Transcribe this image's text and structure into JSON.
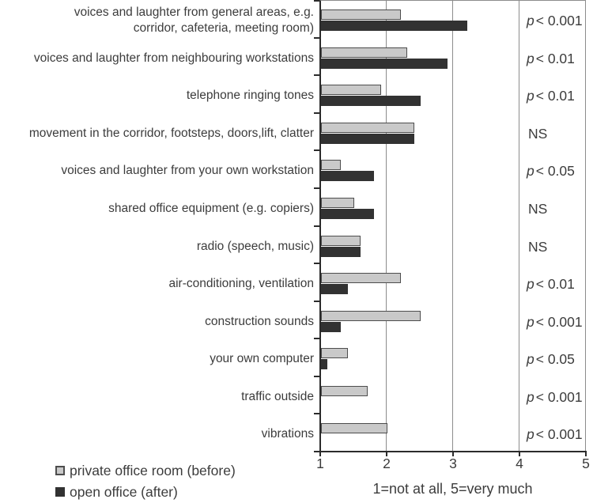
{
  "chart_data": {
    "type": "bar",
    "orientation": "horizontal",
    "title": "",
    "xlabel": "1=not at all, 5=very much",
    "xlim": [
      1,
      5
    ],
    "x_ticks": [
      "1",
      "2",
      "3",
      "4",
      "5"
    ],
    "gridlines_at": [
      2,
      3,
      4
    ],
    "grid": "vertical",
    "legend_position": "bottom-left",
    "axis_color": "#2b2b2b",
    "gridline_color": "#8c8c8c",
    "text_color": "#3c3c3c",
    "categories": [
      "voices and laughter from general areas, e.g.\ncorridor, cafeteria, meeting room)",
      "voices and laughter from neighbouring workstations",
      "telephone ringing tones",
      "movement in the corridor, footsteps, doors,lift, clatter",
      "voices and laughter from your own workstation",
      "shared office equipment (e.g. copiers)",
      "radio (speech, music)",
      "air-conditioning, ventilation",
      "construction sounds",
      "your own computer",
      "traffic outside",
      "vibrations"
    ],
    "series": [
      {
        "name": "private office room (before)",
        "color": "#c9c9c9",
        "border_color": "#4d4d4d",
        "values": [
          2.2,
          2.3,
          1.9,
          2.4,
          1.3,
          1.5,
          1.6,
          2.2,
          2.5,
          1.4,
          1.7,
          2.0
        ]
      },
      {
        "name": "open office (after)",
        "color": "#323232",
        "border_color": "#323232",
        "values": [
          3.2,
          2.9,
          2.5,
          2.4,
          1.8,
          1.8,
          1.6,
          1.4,
          1.3,
          1.1,
          1.0,
          1.0
        ]
      }
    ],
    "significance": [
      {
        "prefix": "p",
        "value": "< 0.001"
      },
      {
        "prefix": "p",
        "value": "< 0.01"
      },
      {
        "prefix": "p",
        "value": "< 0.01"
      },
      {
        "prefix": "",
        "value": "NS"
      },
      {
        "prefix": "p",
        "value": "< 0.05"
      },
      {
        "prefix": "",
        "value": "NS"
      },
      {
        "prefix": "",
        "value": "NS"
      },
      {
        "prefix": "p",
        "value": "< 0.01"
      },
      {
        "prefix": "p",
        "value": "< 0.001"
      },
      {
        "prefix": "p",
        "value": "< 0.05"
      },
      {
        "prefix": "p",
        "value": "< 0.001"
      },
      {
        "prefix": "p",
        "value": "< 0.001"
      }
    ]
  }
}
